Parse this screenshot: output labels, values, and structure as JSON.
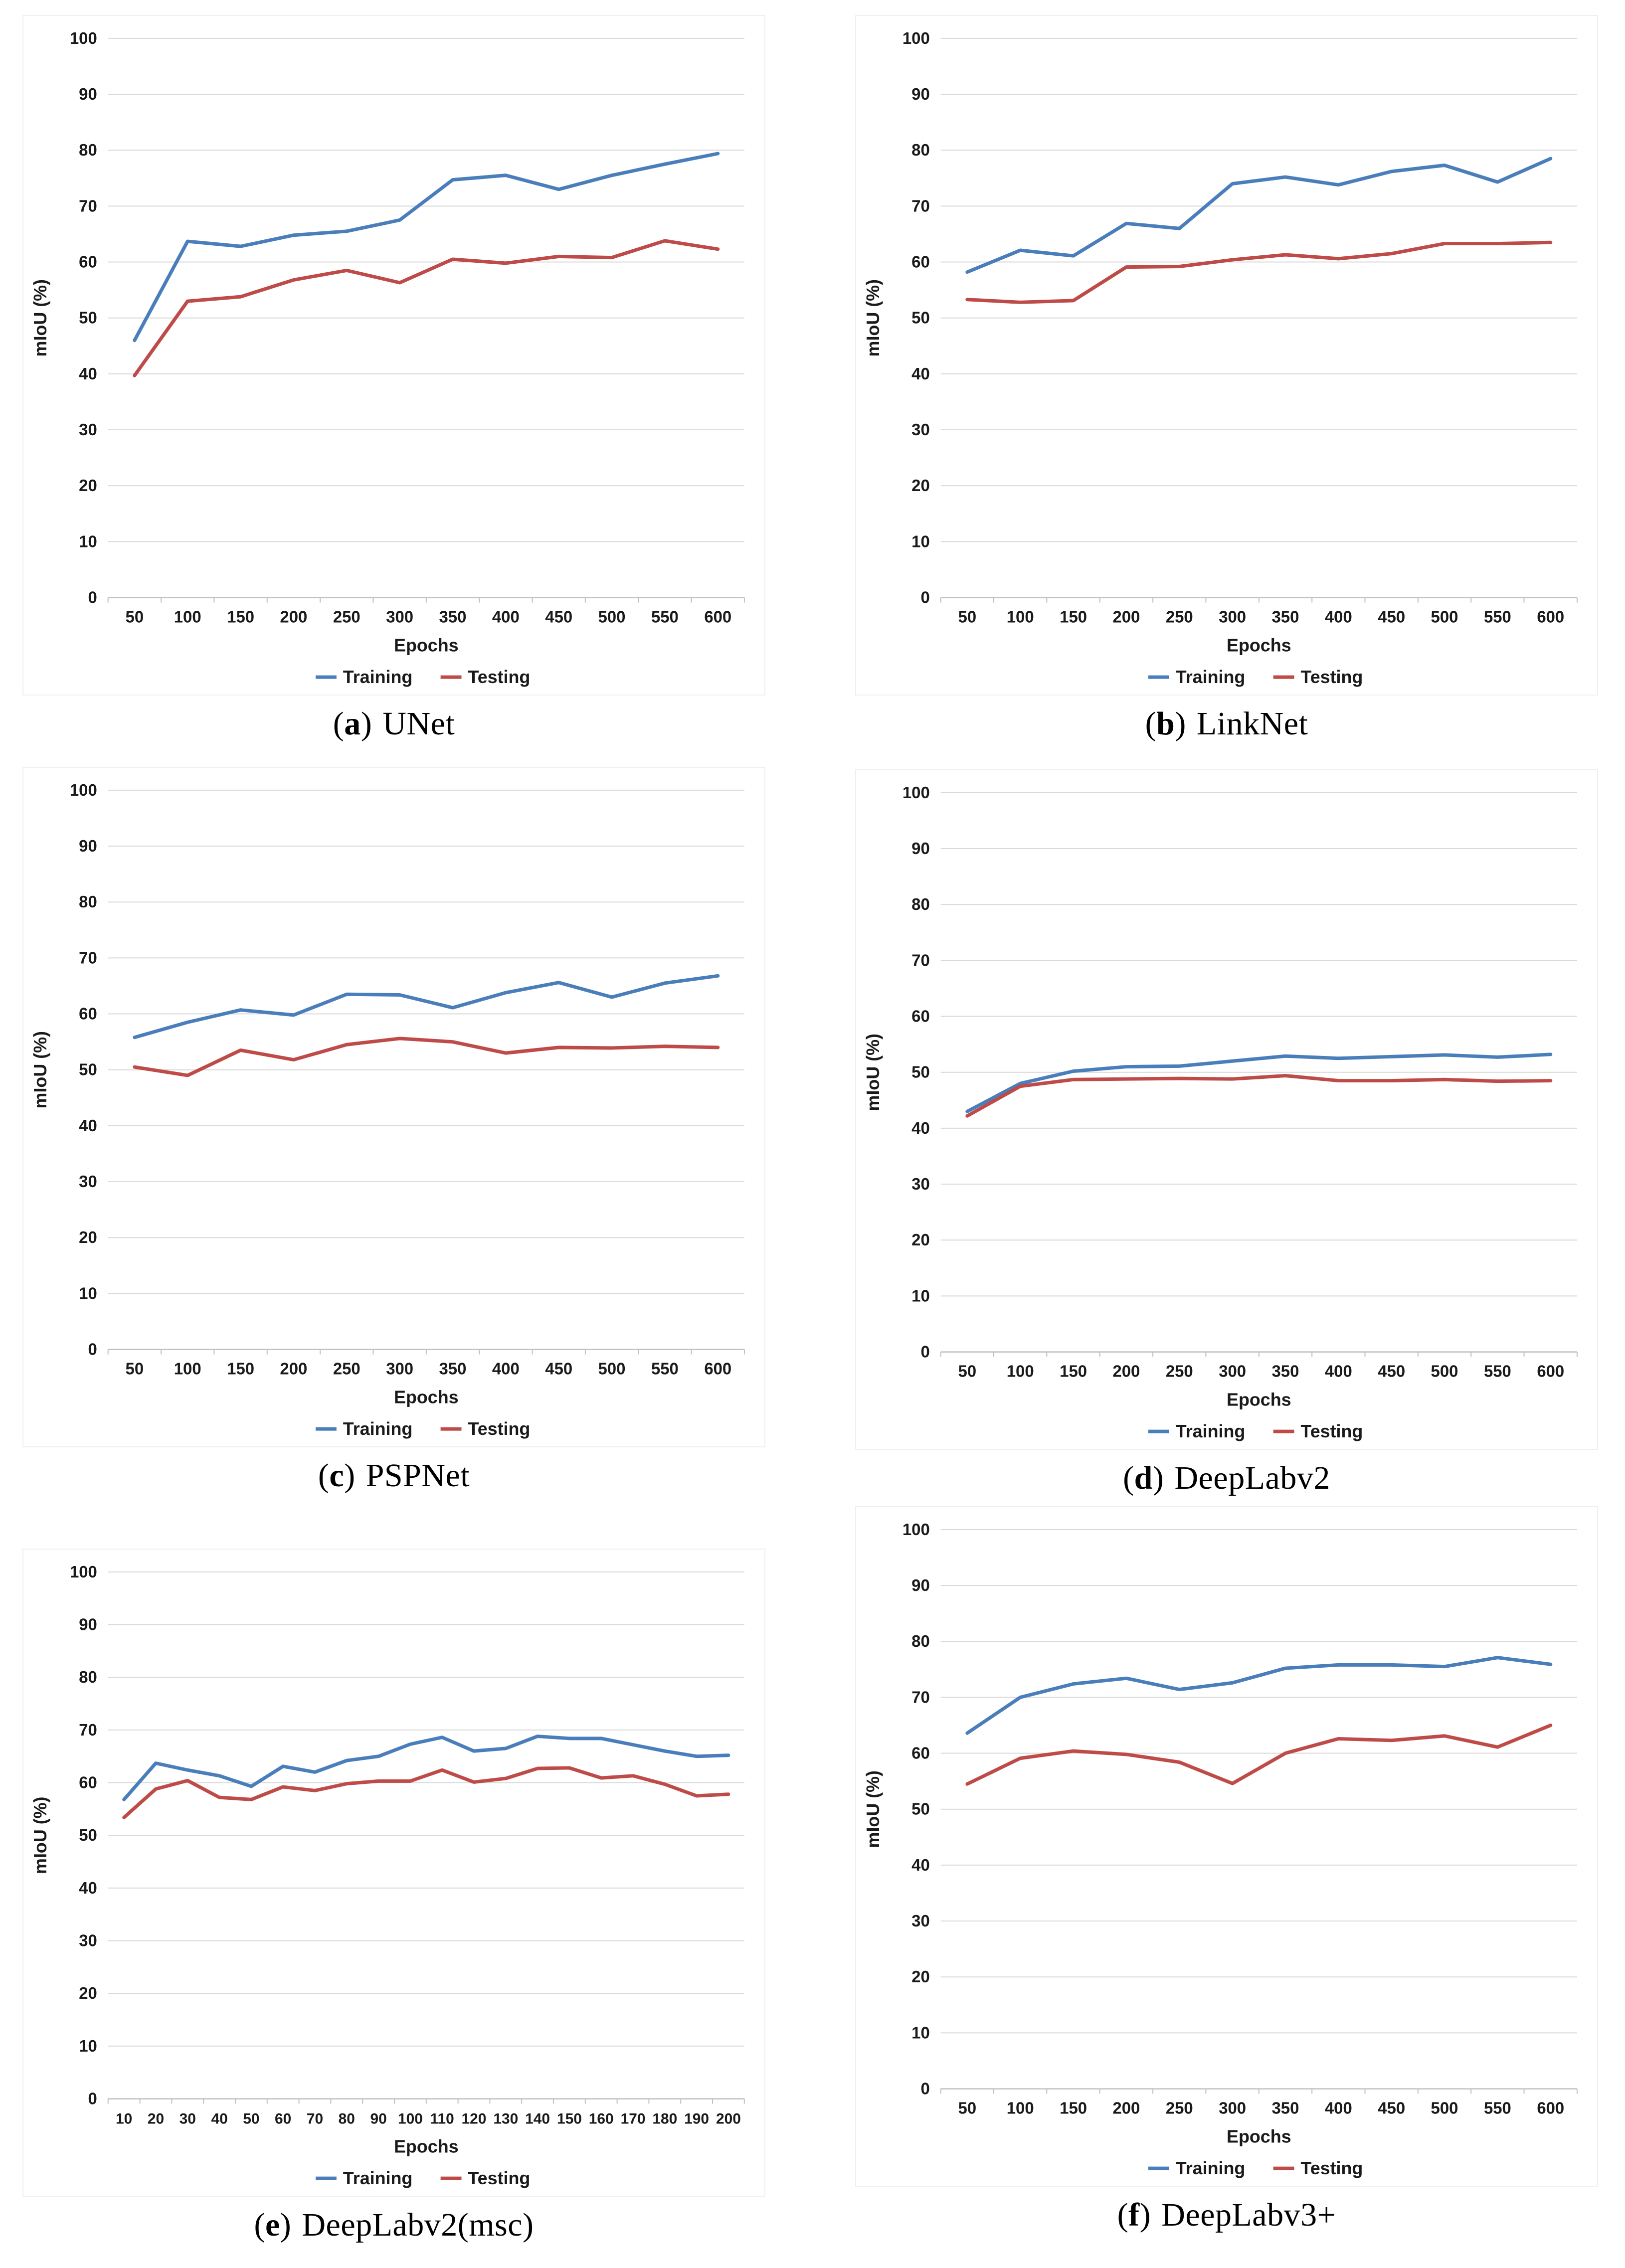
{
  "page": {
    "background": "#ffffff"
  },
  "colors": {
    "training": "#4A7EBB",
    "testing": "#BE4B48",
    "gridline": "#D9D9D9",
    "axis_line": "#BFBFBF",
    "tick_text": "#1A1A1A",
    "panel_border": "#EFEFEF",
    "caption_text": "#000000"
  },
  "chart_data": [
    {
      "type": "line",
      "caption": {
        "open": "(",
        "letter": "a",
        "close": ")",
        "name": "UNet"
      },
      "xlabel": "Epochs",
      "ylabel": "mIoU (%)",
      "ylim": [
        0,
        100
      ],
      "ytick_step": 10,
      "grid": "horizontal",
      "legend_position": "bottom",
      "x": [
        50,
        100,
        150,
        200,
        250,
        300,
        350,
        400,
        450,
        500,
        550,
        600
      ],
      "series": [
        {
          "name": "Training",
          "color": "#4A7EBB",
          "values": [
            46.0,
            63.7,
            62.8,
            64.8,
            65.5,
            67.5,
            74.7,
            75.5,
            73.0,
            75.5,
            77.5,
            79.4
          ]
        },
        {
          "name": "Testing",
          "color": "#BE4B48",
          "values": [
            39.7,
            53.0,
            53.8,
            56.8,
            58.5,
            56.3,
            60.5,
            59.8,
            61.0,
            60.8,
            63.8,
            62.3
          ]
        }
      ]
    },
    {
      "type": "line",
      "caption": {
        "open": "(",
        "letter": "b",
        "close": ")",
        "name": "LinkNet"
      },
      "xlabel": "Epochs",
      "ylabel": "mIoU (%)",
      "ylim": [
        0,
        100
      ],
      "ytick_step": 10,
      "grid": "horizontal",
      "legend_position": "bottom",
      "x": [
        50,
        100,
        150,
        200,
        250,
        300,
        350,
        400,
        450,
        500,
        550,
        600
      ],
      "series": [
        {
          "name": "Training",
          "color": "#4A7EBB",
          "values": [
            58.2,
            62.1,
            61.1,
            66.9,
            66.0,
            74.0,
            75.2,
            73.8,
            76.2,
            77.3,
            74.3,
            78.5
          ]
        },
        {
          "name": "Testing",
          "color": "#BE4B48",
          "values": [
            53.3,
            52.8,
            53.1,
            59.1,
            59.2,
            60.4,
            61.3,
            60.6,
            61.5,
            63.3,
            63.3,
            63.5
          ]
        }
      ]
    },
    {
      "type": "line",
      "caption": {
        "open": "(",
        "letter": "c",
        "close": ")",
        "name": "PSPNet"
      },
      "xlabel": "Epochs",
      "ylabel": "mIoU (%)",
      "ylim": [
        0,
        100
      ],
      "ytick_step": 10,
      "grid": "horizontal",
      "legend_position": "bottom",
      "x": [
        50,
        100,
        150,
        200,
        250,
        300,
        350,
        400,
        450,
        500,
        550,
        600
      ],
      "series": [
        {
          "name": "Training",
          "color": "#4A7EBB",
          "values": [
            55.8,
            58.5,
            60.7,
            59.8,
            63.5,
            63.4,
            61.1,
            63.8,
            65.6,
            63.0,
            65.5,
            66.8
          ]
        },
        {
          "name": "Testing",
          "color": "#BE4B48",
          "values": [
            50.5,
            49.0,
            53.5,
            51.8,
            54.5,
            55.6,
            55.0,
            53.0,
            54.0,
            53.9,
            54.2,
            54.0
          ]
        }
      ]
    },
    {
      "type": "line",
      "caption": {
        "open": "(",
        "letter": "d",
        "close": ")",
        "name": "DeepLabv2"
      },
      "xlabel": "Epochs",
      "ylabel": "mIoU (%)",
      "ylim": [
        0,
        100
      ],
      "ytick_step": 10,
      "grid": "horizontal",
      "legend_position": "bottom",
      "x": [
        50,
        100,
        150,
        200,
        250,
        300,
        350,
        400,
        450,
        500,
        550,
        600
      ],
      "series": [
        {
          "name": "Training",
          "color": "#4A7EBB",
          "values": [
            43.0,
            48.0,
            50.2,
            51.0,
            51.1,
            52.0,
            52.9,
            52.5,
            52.8,
            53.1,
            52.7,
            53.2
          ]
        },
        {
          "name": "Testing",
          "color": "#BE4B48",
          "values": [
            42.2,
            47.5,
            48.7,
            48.8,
            48.9,
            48.8,
            49.4,
            48.5,
            48.5,
            48.7,
            48.4,
            48.5
          ]
        }
      ]
    },
    {
      "type": "line",
      "caption": {
        "open": "(",
        "letter": "e",
        "close": ")",
        "name": "DeepLabv2(msc)"
      },
      "xlabel": "Epochs",
      "ylabel": "mIoU (%)",
      "ylim": [
        0,
        100
      ],
      "ytick_step": 10,
      "grid": "horizontal",
      "legend_position": "bottom",
      "x": [
        10,
        20,
        30,
        40,
        50,
        60,
        70,
        80,
        90,
        100,
        110,
        120,
        130,
        140,
        150,
        160,
        170,
        180,
        190,
        200
      ],
      "series": [
        {
          "name": "Training",
          "color": "#4A7EBB",
          "values": [
            56.8,
            63.7,
            62.4,
            61.3,
            59.3,
            63.1,
            62.0,
            64.2,
            65.0,
            67.3,
            68.6,
            66.0,
            66.5,
            68.8,
            68.4,
            68.4,
            67.2,
            66.0,
            65.0,
            65.2
          ]
        },
        {
          "name": "Testing",
          "color": "#BE4B48",
          "values": [
            53.4,
            58.8,
            60.4,
            57.2,
            56.8,
            59.2,
            58.5,
            59.8,
            60.3,
            60.3,
            62.4,
            60.1,
            60.8,
            62.7,
            62.8,
            60.9,
            61.3,
            59.7,
            57.5,
            57.8
          ]
        }
      ]
    },
    {
      "type": "line",
      "caption": {
        "open": "(",
        "letter": "f",
        "close": ")",
        "name": "DeepLabv3+"
      },
      "xlabel": "Epochs",
      "ylabel": "mIoU (%)",
      "ylim": [
        0,
        100
      ],
      "ytick_step": 10,
      "grid": "horizontal",
      "legend_position": "bottom",
      "x": [
        50,
        100,
        150,
        200,
        250,
        300,
        350,
        400,
        450,
        500,
        550,
        600
      ],
      "series": [
        {
          "name": "Training",
          "color": "#4A7EBB",
          "values": [
            63.6,
            70.0,
            72.4,
            73.4,
            71.4,
            72.6,
            75.2,
            75.8,
            75.8,
            75.5,
            77.1,
            75.9
          ]
        },
        {
          "name": "Testing",
          "color": "#BE4B48",
          "values": [
            54.5,
            59.1,
            60.4,
            59.8,
            58.4,
            54.6,
            60.0,
            62.6,
            62.3,
            63.1,
            61.1,
            65.0
          ]
        }
      ]
    }
  ]
}
